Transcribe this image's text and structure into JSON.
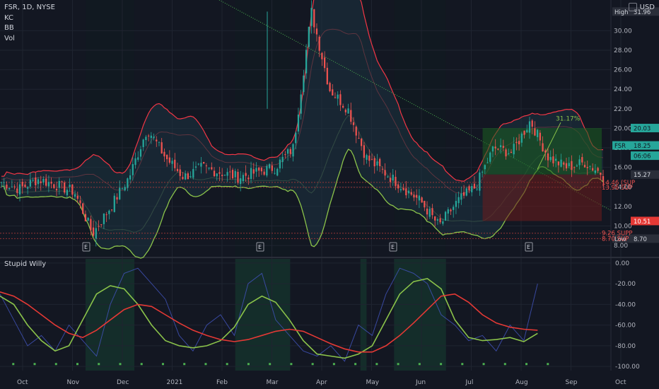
{
  "header": {
    "symbol_line": "FSR, 1D, NYSE",
    "indicators": [
      "KC",
      "BB",
      "Vol"
    ],
    "currency": "USD"
  },
  "sub_pane": {
    "title": "Stupid Willy"
  },
  "colors": {
    "background": "#131722",
    "grid": "#1f2430",
    "up": "#26a69a",
    "down": "#ef5350",
    "bb_band": "#f23645",
    "kc_band": "#8bc34a",
    "fill": "#1e3342",
    "trendline": "#4caf50",
    "long_zone": "#1b5e20",
    "stop_zone": "#6d1b1b",
    "osc_raw": "#3f51b5",
    "osc_fast": "#8bc34a",
    "osc_slow": "#e53935",
    "osc_bg": "#15352e"
  },
  "chart_data": [
    {
      "type": "candlestick",
      "x_ticks": [
        "Oct",
        "Nov",
        "Dec",
        "2021",
        "Feb",
        "Mar",
        "Apr",
        "May",
        "Jun",
        "Jul",
        "Aug",
        "Sep",
        "Oct"
      ],
      "y_ticks": [
        8.0,
        10.0,
        12.0,
        14.0,
        16.0,
        18.0,
        20.0,
        22.0,
        24.0,
        26.0,
        28.0,
        30.0
      ],
      "ylim": [
        7.5,
        33
      ],
      "close_path": [
        [
          "Oct",
          14.5
        ],
        [
          "Oct",
          13.8
        ],
        [
          "Oct",
          14.8
        ],
        [
          "Oct",
          14.2
        ],
        [
          "Oct",
          13.5
        ],
        [
          "Nov",
          9.2
        ],
        [
          "Nov",
          12.0
        ],
        [
          "Nov",
          15.0
        ],
        [
          "Dec",
          20.0
        ],
        [
          "Dec",
          17.0
        ],
        [
          "Dec",
          15.0
        ],
        [
          "Dec",
          16.0
        ],
        [
          "2021",
          15.5
        ],
        [
          "2021",
          15.0
        ],
        [
          "Feb",
          15.5
        ],
        [
          "Feb",
          16.0
        ],
        [
          "Feb",
          18.0
        ],
        [
          "Mar",
          31.96
        ],
        [
          "Mar",
          24.0
        ],
        [
          "Mar",
          22.0
        ],
        [
          "Apr",
          17.0
        ],
        [
          "Apr",
          15.5
        ],
        [
          "Apr",
          14.0
        ],
        [
          "May",
          12.5
        ],
        [
          "May",
          10.0
        ],
        [
          "May",
          12.5
        ],
        [
          "Jun",
          14.0
        ],
        [
          "Jun",
          18.0
        ],
        [
          "Jun",
          17.5
        ],
        [
          "Jul",
          20.8
        ],
        [
          "Jul",
          17.0
        ],
        [
          "Jul",
          16.0
        ],
        [
          "Aug",
          16.5
        ],
        [
          "Aug",
          15.27
        ]
      ],
      "price_labels": [
        {
          "text": "High",
          "value": "31.96"
        },
        {
          "text": "20.03",
          "value": 20.03
        },
        {
          "text": "FSR",
          "value": "18.25"
        },
        {
          "text": "06:06",
          "value": 17.2
        },
        {
          "text": "15.27",
          "value": 15.27
        },
        {
          "text": "14.46 (SUP",
          "value": 14.46
        },
        {
          "text": "13.96 SUP",
          "value": 13.96
        },
        {
          "text": "10.51",
          "value": 10.51
        },
        {
          "text": "9.26 SUPP",
          "value": 9.26
        },
        {
          "text": "Low",
          "value": "8.70"
        },
        {
          "text": "8.70 SUP",
          "value": 8.7
        }
      ],
      "annotations": {
        "target_percent": "31.17%",
        "earnings_marker": "E"
      },
      "trendline": {
        "from": [
          "Oct",
          33
        ],
        "to": [
          "Oct",
          11.5
        ]
      }
    },
    {
      "type": "line",
      "title": "Stupid Willy",
      "y_ticks": [
        0.0,
        -20.0,
        -40.0,
        -60.0,
        -80.0,
        -100.0
      ],
      "ylim": [
        -104,
        4
      ],
      "series": [
        {
          "values": [
            -30,
            -55,
            -80,
            -70,
            -85,
            -60,
            -75,
            -90,
            -40,
            -10,
            -5,
            -20,
            -35,
            -70,
            -85,
            -60,
            -50,
            -70,
            -20,
            -10,
            -55,
            -70,
            -85,
            -90,
            -80,
            -95,
            -60,
            -70,
            -30,
            -5,
            -10,
            -20,
            -50,
            -60,
            -75,
            -70,
            -85,
            -60,
            -75,
            -20
          ]
        },
        {
          "values": [
            -32,
            -40,
            -60,
            -75,
            -85,
            -80,
            -55,
            -30,
            -22,
            -25,
            -40,
            -60,
            -75,
            -80,
            -82,
            -80,
            -75,
            -62,
            -40,
            -32,
            -38,
            -55,
            -75,
            -88,
            -90,
            -92,
            -88,
            -80,
            -55,
            -30,
            -18,
            -15,
            -25,
            -55,
            -72,
            -75,
            -74,
            -72,
            -76,
            -68
          ]
        },
        {
          "values": [
            -28,
            -32,
            -40,
            -50,
            -60,
            -68,
            -72,
            -65,
            -55,
            -45,
            -40,
            -42,
            -50,
            -58,
            -65,
            -70,
            -74,
            -76,
            -74,
            -70,
            -66,
            -64,
            -66,
            -72,
            -78,
            -83,
            -86,
            -86,
            -80,
            -70,
            -58,
            -45,
            -32,
            -30,
            -38,
            -50,
            -58,
            -62,
            -64,
            -65
          ]
        }
      ]
    }
  ]
}
